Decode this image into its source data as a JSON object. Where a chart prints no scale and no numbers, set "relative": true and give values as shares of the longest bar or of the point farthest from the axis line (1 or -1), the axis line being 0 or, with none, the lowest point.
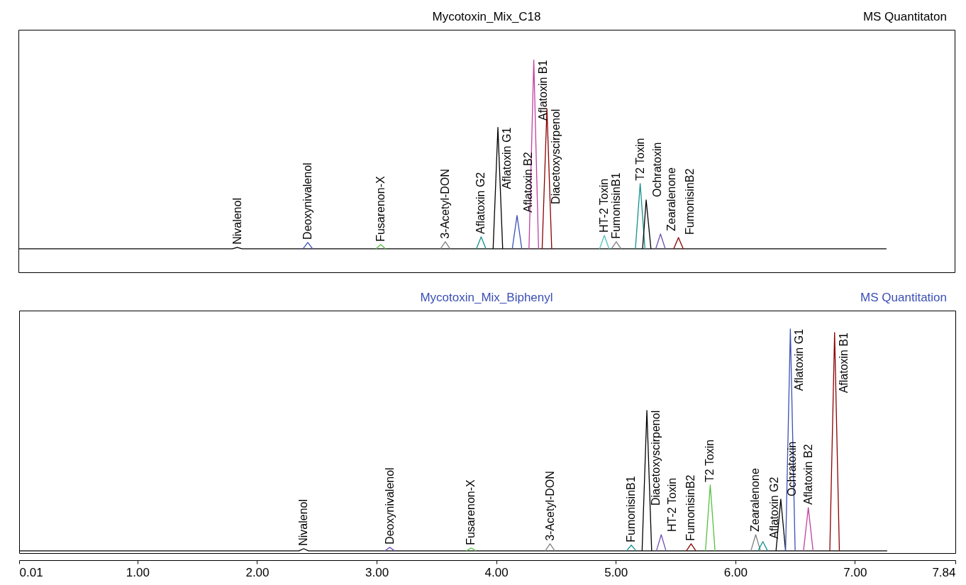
{
  "chart_data": [
    {
      "type": "line",
      "title": "Mycotoxin_Mix_C18",
      "subtitle": "MS Quantitaton",
      "relative": true,
      "xlim": [
        0.01,
        7.84
      ],
      "tick_labels": false,
      "series": [
        {
          "color": "#000000",
          "x": [
            0.01,
            1.8,
            1.84,
            1.88,
            7.27
          ],
          "values": [
            0,
            0,
            0.008,
            0,
            0
          ]
        },
        {
          "color": "#3a4fb5",
          "x": [
            2.39,
            2.43,
            2.47
          ],
          "values": [
            0,
            0.034,
            0
          ]
        },
        {
          "color": "#55c040",
          "x": [
            3.0,
            3.04,
            3.08
          ],
          "values": [
            0,
            0.023,
            0
          ]
        },
        {
          "color": "#808080",
          "x": [
            3.54,
            3.58,
            3.62
          ],
          "values": [
            0,
            0.038,
            0
          ]
        },
        {
          "color": "#149090",
          "x": [
            3.84,
            3.88,
            3.92
          ],
          "values": [
            0,
            0.064,
            0
          ]
        },
        {
          "color": "#000000",
          "x": [
            3.98,
            4.02,
            4.06
          ],
          "values": [
            0,
            0.643,
            0
          ]
        },
        {
          "color": "#3a4fb5",
          "x": [
            4.14,
            4.18,
            4.22
          ],
          "values": [
            0,
            0.177,
            0
          ]
        },
        {
          "color": "#c040a0",
          "x": [
            4.28,
            4.32,
            4.36
          ],
          "values": [
            0,
            1,
            0
          ]
        },
        {
          "color": "#8b0000",
          "x": [
            4.39,
            4.43,
            4.47
          ],
          "values": [
            0,
            0.741,
            0
          ]
        },
        {
          "color": "#50c0c0",
          "x": [
            4.87,
            4.91,
            4.95
          ],
          "values": [
            0,
            0.071,
            0
          ]
        },
        {
          "color": "#808080",
          "x": [
            4.97,
            5.01,
            5.05
          ],
          "values": [
            0,
            0.038,
            0
          ]
        },
        {
          "color": "#149090",
          "x": [
            5.17,
            5.21,
            5.25
          ],
          "values": [
            0,
            0.346,
            0
          ]
        },
        {
          "color": "#000000",
          "x": [
            5.23,
            5.26,
            5.3
          ],
          "values": [
            0,
            0.259,
            0
          ]
        },
        {
          "color": "#7050b0",
          "x": [
            5.34,
            5.38,
            5.42
          ],
          "values": [
            0,
            0.079,
            0
          ]
        },
        {
          "color": "#8b0000",
          "x": [
            5.49,
            5.53,
            5.57
          ],
          "values": [
            0,
            0.06,
            0
          ]
        }
      ],
      "annotations": [
        {
          "text": "Nivalenol",
          "x": 1.84,
          "y": 0.008
        },
        {
          "text": "Deoxynivalenol",
          "x": 2.43,
          "y": 0.034
        },
        {
          "text": "Fusarenon-X",
          "x": 3.04,
          "y": 0.023
        },
        {
          "text": "3-Acetyl-DON",
          "x": 3.58,
          "y": 0.038
        },
        {
          "text": "Aflatoxin G2",
          "x": 3.88,
          "y": 0.064
        },
        {
          "text": "Aflatoxin G1",
          "x": 4.02,
          "y": 0.643
        },
        {
          "text": "Aflatoxin B2",
          "x": 4.18,
          "y": 0.177
        },
        {
          "text": "Aflatoxin B1",
          "x": 4.32,
          "y": 1
        },
        {
          "text": "Diacetoxyscirpenol",
          "x": 4.43,
          "y": 0.741
        },
        {
          "text": "HT-2 Toxin",
          "x": 4.91,
          "y": 0.071
        },
        {
          "text": "FumonisinB1",
          "x": 5.01,
          "y": 0.038
        },
        {
          "text": "T2 Toxin",
          "x": 5.21,
          "y": 0.346
        },
        {
          "text": "Ochratoxin",
          "x": 5.26,
          "y": 0.259
        },
        {
          "text": "Zearalenone",
          "x": 5.38,
          "y": 0.079
        },
        {
          "text": "FumonisinB2",
          "x": 5.53,
          "y": 0.06
        }
      ]
    },
    {
      "type": "line",
      "title": "Mycotoxin_Mix_Biphenyl",
      "subtitle": "MS Quantitation",
      "relative": true,
      "xlim": [
        0.01,
        7.84
      ],
      "tick_labels": "x",
      "xticks": [
        0.01,
        {
          "value": 1,
          "label": "1.00"
        },
        {
          "value": 2,
          "label": "2.00"
        },
        {
          "value": 3,
          "label": "3.00"
        },
        {
          "value": 4,
          "label": "4.00"
        },
        {
          "value": 5,
          "label": "5.00"
        },
        {
          "value": 6,
          "label": "6.00"
        },
        {
          "value": 7,
          "label": "7.00"
        },
        7.84
      ],
      "series": [
        {
          "color": "#000000",
          "x": [
            0.01,
            2.35,
            2.39,
            2.43,
            7.27
          ],
          "values": [
            0,
            0,
            0.01,
            0,
            0
          ]
        },
        {
          "color": "#7050b0",
          "x": [
            3.07,
            3.11,
            3.15
          ],
          "values": [
            0,
            0.016,
            0
          ]
        },
        {
          "color": "#55c040",
          "x": [
            3.75,
            3.79,
            3.83
          ],
          "values": [
            0,
            0.013,
            0
          ]
        },
        {
          "color": "#808080",
          "x": [
            4.41,
            4.45,
            4.49
          ],
          "values": [
            0,
            0.032,
            0
          ]
        },
        {
          "color": "#149090",
          "x": [
            5.09,
            5.13,
            5.17
          ],
          "values": [
            0,
            0.026,
            0
          ]
        },
        {
          "color": "#000000",
          "x": [
            5.22,
            5.26,
            5.3
          ],
          "values": [
            0,
            0.633,
            0
          ]
        },
        {
          "color": "#7050b0",
          "x": [
            5.34,
            5.38,
            5.42
          ],
          "values": [
            0,
            0.073,
            0
          ]
        },
        {
          "color": "#8b0000",
          "x": [
            5.59,
            5.63,
            5.67
          ],
          "values": [
            0,
            0.032,
            0
          ]
        },
        {
          "color": "#55c040",
          "x": [
            5.75,
            5.79,
            5.83
          ],
          "values": [
            0,
            0.297,
            0
          ]
        },
        {
          "color": "#808080",
          "x": [
            6.13,
            6.17,
            6.21
          ],
          "values": [
            0,
            0.073,
            0
          ]
        },
        {
          "color": "#149090",
          "x": [
            6.19,
            6.23,
            6.27
          ],
          "values": [
            0,
            0.042,
            0
          ]
        },
        {
          "color": "#000000",
          "x": [
            6.34,
            6.38,
            6.42
          ],
          "values": [
            0,
            0.233,
            0
          ]
        },
        {
          "color": "#3a4fb5",
          "x": [
            6.42,
            6.46,
            6.5
          ],
          "values": [
            0,
            1,
            0
          ]
        },
        {
          "color": "#c040a0",
          "x": [
            6.57,
            6.61,
            6.65
          ],
          "values": [
            0,
            0.195,
            0
          ]
        },
        {
          "color": "#8b0000",
          "x": [
            6.79,
            6.83,
            6.87
          ],
          "values": [
            0,
            0.984,
            0
          ]
        }
      ],
      "annotations": [
        {
          "text": "Nivalenol",
          "x": 2.39,
          "y": 0.01
        },
        {
          "text": "Deoxynivalenol",
          "x": 3.11,
          "y": 0.016
        },
        {
          "text": "Fusarenon-X",
          "x": 3.79,
          "y": 0.013
        },
        {
          "text": "3-Acetyl-DON",
          "x": 4.45,
          "y": 0.032
        },
        {
          "text": "FumonisinB1",
          "x": 5.13,
          "y": 0.026
        },
        {
          "text": "Diacetoxyscirpenol",
          "x": 5.26,
          "y": 0.633
        },
        {
          "text": "HT-2 Toxin",
          "x": 5.38,
          "y": 0.073
        },
        {
          "text": "FumonisinB2",
          "x": 5.63,
          "y": 0.032
        },
        {
          "text": "T2 Toxin",
          "x": 5.79,
          "y": 0.297
        },
        {
          "text": "Zearalenone",
          "x": 6.17,
          "y": 0.073
        },
        {
          "text": "Aflatoxin G2",
          "x": 6.23,
          "y": 0.042
        },
        {
          "text": "Ochratoxin",
          "x": 6.38,
          "y": 0.233
        },
        {
          "text": "Aflatoxin G1",
          "x": 6.46,
          "y": 1
        },
        {
          "text": "Aflatoxin B2",
          "x": 6.61,
          "y": 0.195
        },
        {
          "text": "Aflatoxin B1",
          "x": 6.83,
          "y": 0.984
        }
      ]
    }
  ]
}
